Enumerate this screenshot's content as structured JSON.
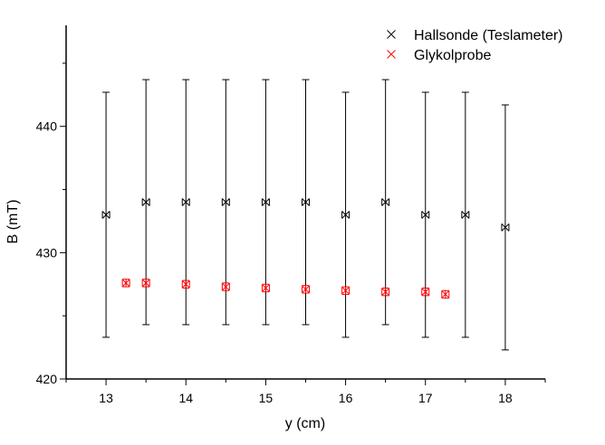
{
  "chart_data": {
    "type": "scatter",
    "xlabel": "y (cm)",
    "ylabel": "B (mT)",
    "xlim": [
      12.5,
      18.5
    ],
    "ylim": [
      420,
      448
    ],
    "xticks": [
      13,
      14,
      15,
      16,
      17,
      18
    ],
    "yticks": [
      420,
      430,
      440
    ],
    "legend_position": "top-right",
    "grid": false,
    "series": [
      {
        "name": "Hallsonde (Teslameter)",
        "color": "#000000",
        "marker": "x-in-box",
        "points": [
          {
            "x": 13.0,
            "y": 433,
            "err": 9.7
          },
          {
            "x": 13.5,
            "y": 434,
            "err": 9.7
          },
          {
            "x": 14.0,
            "y": 434,
            "err": 9.7
          },
          {
            "x": 14.5,
            "y": 434,
            "err": 9.7
          },
          {
            "x": 15.0,
            "y": 434,
            "err": 9.7
          },
          {
            "x": 15.5,
            "y": 434,
            "err": 9.7
          },
          {
            "x": 16.0,
            "y": 433,
            "err": 9.7
          },
          {
            "x": 16.5,
            "y": 434,
            "err": 9.7
          },
          {
            "x": 17.0,
            "y": 433,
            "err": 9.7
          },
          {
            "x": 17.5,
            "y": 433,
            "err": 9.7
          },
          {
            "x": 18.0,
            "y": 432,
            "err": 9.7
          }
        ]
      },
      {
        "name": "Glykolprobe",
        "color": "#ff0000",
        "marker": "x-in-box",
        "points": [
          {
            "x": 13.25,
            "y": 427.6,
            "err": 0.3
          },
          {
            "x": 13.5,
            "y": 427.6,
            "err": 0.3
          },
          {
            "x": 14.0,
            "y": 427.5,
            "err": 0.3
          },
          {
            "x": 14.5,
            "y": 427.3,
            "err": 0.3
          },
          {
            "x": 15.0,
            "y": 427.2,
            "err": 0.3
          },
          {
            "x": 15.5,
            "y": 427.1,
            "err": 0.3
          },
          {
            "x": 16.0,
            "y": 427.0,
            "err": 0.3
          },
          {
            "x": 16.5,
            "y": 426.9,
            "err": 0.3
          },
          {
            "x": 17.0,
            "y": 426.9,
            "err": 0.3
          },
          {
            "x": 17.25,
            "y": 426.7,
            "err": 0.3
          }
        ]
      }
    ]
  }
}
